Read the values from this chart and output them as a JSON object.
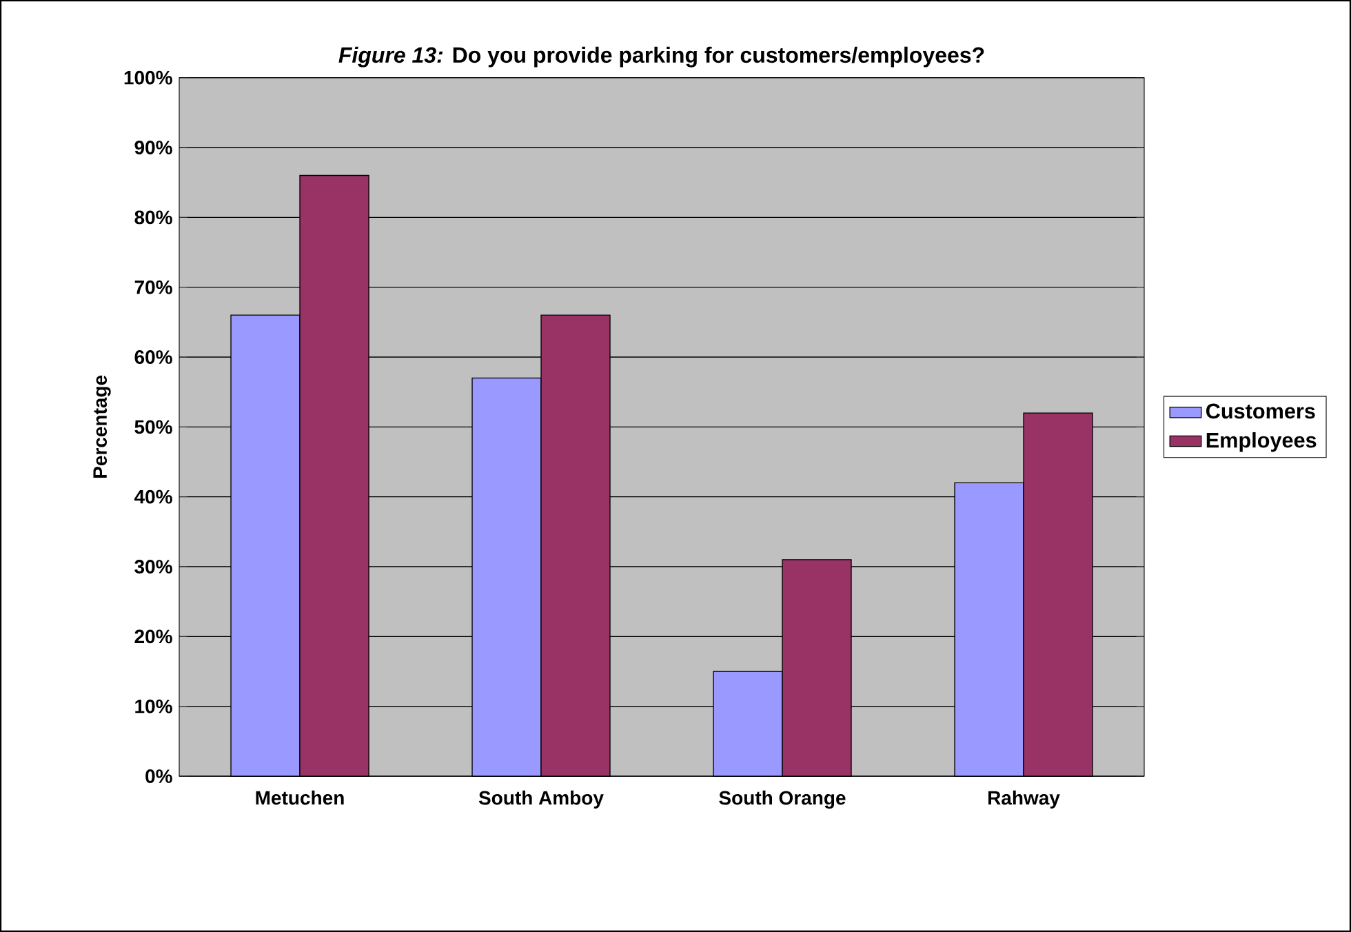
{
  "chart_data": {
    "type": "bar",
    "title": "*Figure 13:*  Do you provide parking for customers/employees?",
    "ylabel": "Percentage",
    "categories": [
      "Metuchen",
      "South Amboy",
      "South Orange",
      "Rahway"
    ],
    "series": [
      {
        "name": "Customers",
        "color": "#9999ff",
        "values": [
          66,
          57,
          15,
          42
        ]
      },
      {
        "name": "Employees",
        "color": "#993366",
        "values": [
          86,
          66,
          31,
          52
        ]
      }
    ],
    "ylim": [
      0,
      100
    ],
    "yticks": [
      {
        "value": 0,
        "label": "0%"
      },
      {
        "value": 10,
        "label": "10%"
      },
      {
        "value": 20,
        "label": "20%"
      },
      {
        "value": 30,
        "label": "30%"
      },
      {
        "value": 40,
        "label": "40%"
      },
      {
        "value": 50,
        "label": "50%"
      },
      {
        "value": 60,
        "label": "60%"
      },
      {
        "value": 70,
        "label": "70%"
      },
      {
        "value": 80,
        "label": "80%"
      },
      {
        "value": 90,
        "label": "90%"
      },
      {
        "value": 100,
        "label": "100%"
      }
    ],
    "grid": "y",
    "legend": "right"
  }
}
